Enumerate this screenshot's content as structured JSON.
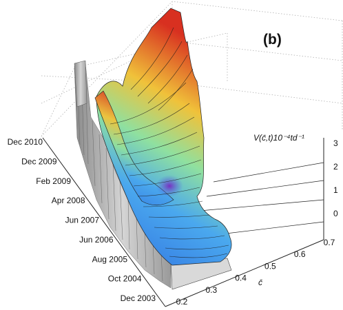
{
  "chart_data": {
    "type": "surface3d",
    "panel_label": "(b)",
    "z_axis_label": "V(c̄,t)10⁻⁴td⁻¹",
    "x_axis_label": "c̄",
    "x_ticks": [
      "0.2",
      "0.3",
      "0.4",
      "0.5",
      "0.6",
      "0.7"
    ],
    "y_ticks": [
      "Dec 2003",
      "Oct 2004",
      "Aug 2005",
      "Jun 2006",
      "Jun 2007",
      "Apr 2008",
      "Feb 2009",
      "Dec 2009",
      "Dec 2010"
    ],
    "z_ticks": [
      "0",
      "1",
      "2",
      "3"
    ],
    "grid": true,
    "colormap": [
      "#5a3fd0",
      "#3f7fe6",
      "#58b8f0",
      "#96e08a",
      "#f0c23a",
      "#d83020"
    ],
    "surface_color_side": "#a8a8a8"
  }
}
